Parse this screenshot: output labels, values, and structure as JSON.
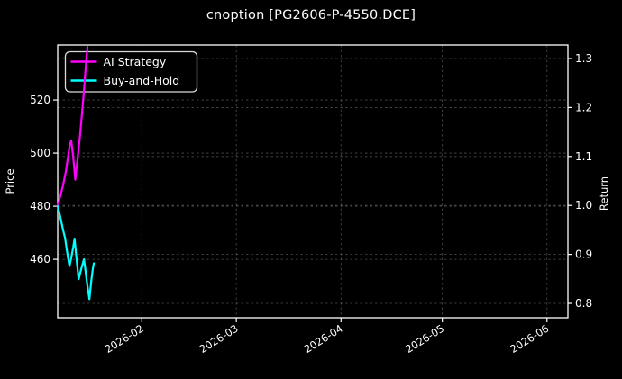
{
  "title": "cnoption [PG2606-P-4550.DCE]",
  "colors": {
    "background": "#000000",
    "text": "#ffffff",
    "spine": "#ffffff",
    "grid": "#8a8a8a",
    "legend_border": "#d9d9d9",
    "legend_fill": "#000000",
    "ai_strategy": "#ff00ff",
    "buy_and_hold": "#00ffff"
  },
  "chart_data": {
    "type": "line",
    "title": "cnoption [PG2606-P-4550.DCE]",
    "grid": "dashed",
    "x_axis": {
      "epoch": "2026-01-01",
      "tick_labels": [
        "2026-02",
        "2026-03",
        "2026-04",
        "2026-05",
        "2026-06"
      ],
      "tick_days": [
        31,
        59,
        90,
        120,
        151
      ],
      "range_days": [
        6.1,
        157.2
      ]
    },
    "y_left": {
      "label": "Price",
      "ticks": [
        460,
        480,
        500,
        520
      ],
      "range": [
        438.0,
        540.7
      ]
    },
    "y_right": {
      "label": "Return",
      "ticks": [
        0.8,
        0.9,
        1.0,
        1.1,
        1.2,
        1.3
      ],
      "range": [
        0.7706,
        1.3276
      ]
    },
    "legend": {
      "position": "upper-left",
      "items": [
        {
          "label": "AI Strategy",
          "color": "#ff00ff"
        },
        {
          "label": "Buy-and-Hold",
          "color": "#00ffff"
        }
      ]
    },
    "series": [
      {
        "name": "AI Strategy",
        "color": "#ff00ff",
        "axis": "left",
        "points": [
          [
            6.1,
            480.0
          ],
          [
            6.9,
            484.0
          ],
          [
            7.7,
            488.0
          ],
          [
            8.5,
            493.0
          ],
          [
            9.1,
            498.0
          ],
          [
            9.7,
            503.5
          ],
          [
            10.1,
            504.7
          ],
          [
            10.7,
            498.5
          ],
          [
            11.3,
            490.0
          ],
          [
            12.0,
            498.0
          ],
          [
            12.6,
            505.0
          ],
          [
            13.1,
            512.0
          ],
          [
            13.7,
            521.0
          ],
          [
            14.2,
            529.0
          ],
          [
            14.7,
            537.0
          ],
          [
            14.9,
            540.0
          ]
        ]
      },
      {
        "name": "Buy-and-Hold",
        "color": "#00ffff",
        "axis": "left",
        "points": [
          [
            6.1,
            480.0
          ],
          [
            6.7,
            477.0
          ],
          [
            7.2,
            474.0
          ],
          [
            7.7,
            471.0
          ],
          [
            8.3,
            468.0
          ],
          [
            8.8,
            463.5
          ],
          [
            9.3,
            459.5
          ],
          [
            9.6,
            457.5
          ],
          [
            10.1,
            460.5
          ],
          [
            10.7,
            464.5
          ],
          [
            11.1,
            467.8
          ],
          [
            11.5,
            462.5
          ],
          [
            11.9,
            457.5
          ],
          [
            12.3,
            452.5
          ],
          [
            12.8,
            455.0
          ],
          [
            13.3,
            457.5
          ],
          [
            13.9,
            460.0
          ],
          [
            14.4,
            455.0
          ],
          [
            14.9,
            450.0
          ],
          [
            15.5,
            445.0
          ],
          [
            16.0,
            451.5
          ],
          [
            16.5,
            456.5
          ],
          [
            16.8,
            458.5
          ]
        ]
      }
    ]
  }
}
